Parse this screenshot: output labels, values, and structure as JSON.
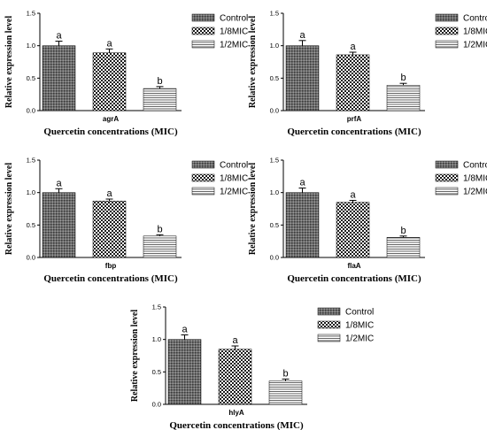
{
  "chart_data": [
    {
      "type": "bar",
      "title": "",
      "gene": "agrA",
      "xlabel": "Quercetin concentrations (MIC)",
      "ylabel": "Relative expression level",
      "ylim": [
        0,
        1.5
      ],
      "yticks": [
        "0.0",
        "0.5",
        "1.0",
        "1.5"
      ],
      "categories": [
        "Control",
        "1/8MIC",
        "1/2MIC"
      ],
      "values": [
        1.0,
        0.89,
        0.34
      ],
      "errors": [
        0.07,
        0.06,
        0.03
      ],
      "significance": [
        "a",
        "a",
        "b"
      ],
      "legend": [
        "Control",
        "1/8MIC",
        "1/2MIC"
      ],
      "legend_position": "top-right",
      "grid": false
    },
    {
      "type": "bar",
      "title": "",
      "gene": "prfA",
      "xlabel": "Quercetin concentrations (MIC)",
      "ylabel": "Relative expression level",
      "ylim": [
        0,
        1.5
      ],
      "yticks": [
        "0.0",
        "0.5",
        "1.0",
        "1.5"
      ],
      "categories": [
        "Control",
        "1/8MIC",
        "1/2MIC"
      ],
      "values": [
        1.0,
        0.86,
        0.39
      ],
      "errors": [
        0.08,
        0.04,
        0.03
      ],
      "significance": [
        "a",
        "a",
        "b"
      ],
      "legend": [
        "Control",
        "1/8MIC",
        "1/2MIC"
      ],
      "legend_position": "top-right",
      "grid": false
    },
    {
      "type": "bar",
      "title": "",
      "gene": "fbp",
      "xlabel": "Quercetin concentrations (MIC)",
      "ylabel": "Relative expression level",
      "ylim": [
        0,
        1.5
      ],
      "yticks": [
        "0.0",
        "0.5",
        "1.0",
        "1.5"
      ],
      "categories": [
        "Control",
        "1/8MIC",
        "1/2MIC"
      ],
      "values": [
        1.0,
        0.87,
        0.33
      ],
      "errors": [
        0.06,
        0.03,
        0.02
      ],
      "significance": [
        "a",
        "a",
        "b"
      ],
      "legend": [
        "Control",
        "1/8MIC",
        "1/2MIC"
      ],
      "legend_position": "top-right",
      "grid": false
    },
    {
      "type": "bar",
      "title": "",
      "gene": "flaA",
      "xlabel": "Quercetin concentrations (MIC)",
      "ylabel": "Relative expression level",
      "ylim": [
        0,
        1.5
      ],
      "yticks": [
        "0.0",
        "0.5",
        "1.0",
        "1.5"
      ],
      "categories": [
        "Control",
        "1/8MIC",
        "1/2MIC"
      ],
      "values": [
        1.0,
        0.85,
        0.31
      ],
      "errors": [
        0.07,
        0.03,
        0.02
      ],
      "significance": [
        "a",
        "a",
        "b"
      ],
      "legend": [
        "Control",
        "1/8MIC",
        "1/2MIC"
      ],
      "legend_position": "top-right",
      "grid": false
    },
    {
      "type": "bar",
      "title": "",
      "gene": "hlyA",
      "xlabel": "Quercetin concentrations (MIC)",
      "ylabel": "Relative expression level",
      "ylim": [
        0,
        1.5
      ],
      "yticks": [
        "0.0",
        "0.5",
        "1.0",
        "1.5"
      ],
      "categories": [
        "Control",
        "1/8MIC",
        "1/2MIC"
      ],
      "values": [
        1.0,
        0.85,
        0.36
      ],
      "errors": [
        0.07,
        0.05,
        0.03
      ],
      "significance": [
        "a",
        "a",
        "b"
      ],
      "legend": [
        "Control",
        "1/8MIC",
        "1/2MIC"
      ],
      "legend_position": "top-right",
      "grid": false
    }
  ]
}
